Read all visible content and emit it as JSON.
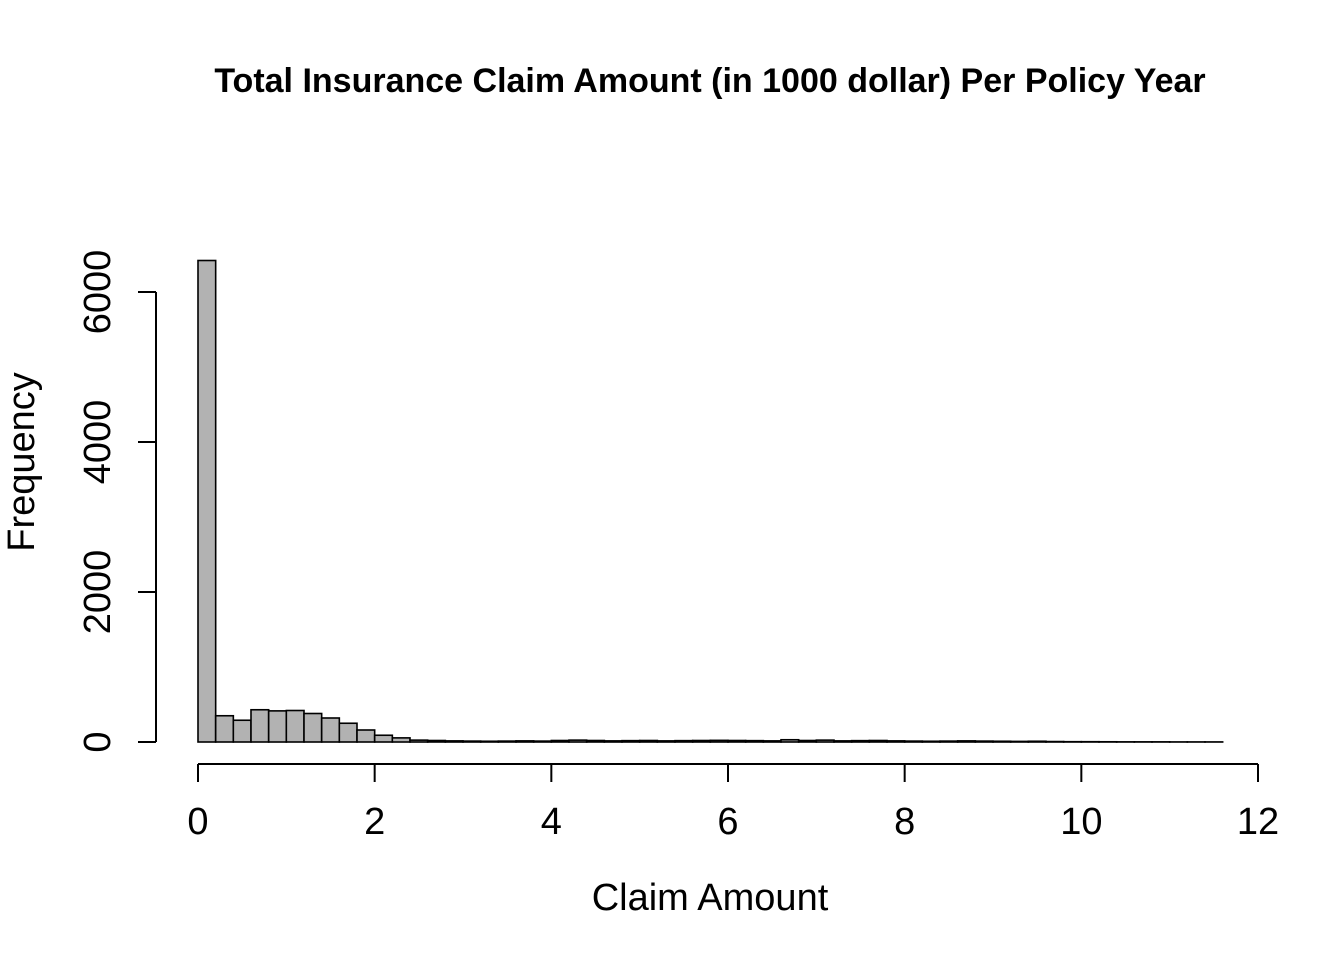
{
  "chart_data": {
    "type": "bar",
    "title": "Total Insurance Claim Amount (in 1000 dollar) Per Policy Year",
    "xlabel": "Claim Amount",
    "ylabel": "Frequency",
    "xlim": [
      0,
      12
    ],
    "ylim": [
      0,
      6400
    ],
    "x_ticks": [
      0,
      2,
      4,
      6,
      8,
      10,
      12
    ],
    "y_ticks": [
      0,
      2000,
      4000,
      6000
    ],
    "bin_width": 0.2,
    "bin_edges_start": 0,
    "values": [
      6420,
      350,
      290,
      430,
      415,
      420,
      380,
      320,
      250,
      160,
      90,
      55,
      25,
      20,
      15,
      12,
      10,
      12,
      15,
      12,
      20,
      25,
      20,
      15,
      18,
      20,
      15,
      18,
      20,
      22,
      20,
      18,
      15,
      30,
      20,
      25,
      15,
      18,
      20,
      15,
      12,
      10,
      12,
      15,
      12,
      10,
      8,
      10,
      6,
      4,
      4,
      3,
      2,
      2,
      2,
      1,
      1,
      1
    ],
    "bar_color": "#b2b2b2",
    "grid": false,
    "legend": "none"
  }
}
